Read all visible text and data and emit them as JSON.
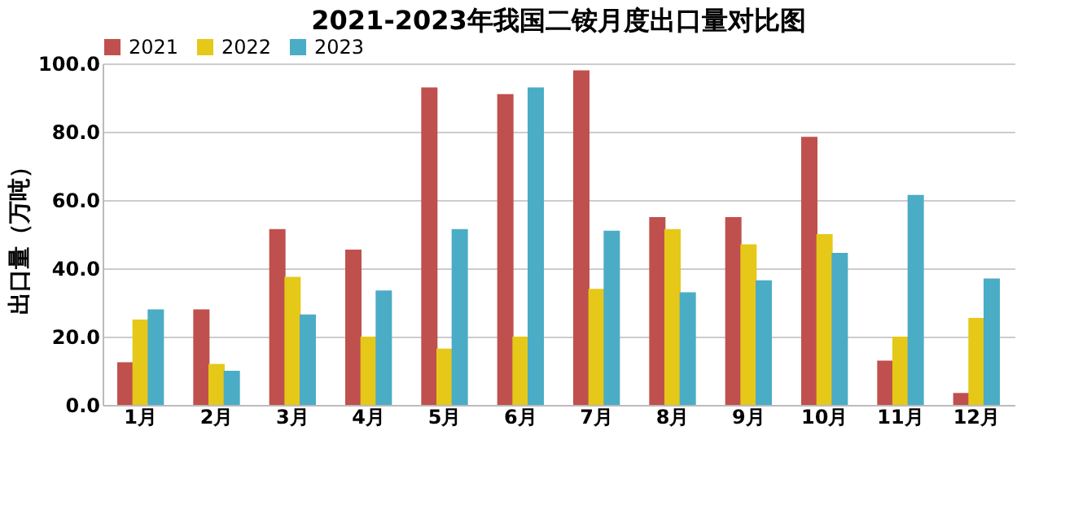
{
  "chart_data": {
    "type": "bar",
    "title": "2021-2023年我国二铵月度出口量对比图",
    "ylabel": "出口量（万吨）",
    "categories": [
      "1月",
      "2月",
      "3月",
      "4月",
      "5月",
      "6月",
      "7月",
      "8月",
      "9月",
      "10月",
      "11月",
      "12月"
    ],
    "series": [
      {
        "name": "2021",
        "color": "#c0504d",
        "values": [
          12.5,
          28,
          51.5,
          45.5,
          93,
          91,
          98,
          55,
          55,
          78.5,
          13,
          3.5
        ]
      },
      {
        "name": "2022",
        "color": "#e6c818",
        "values": [
          25,
          12,
          37.5,
          20,
          16.5,
          20,
          34,
          51.5,
          47,
          50,
          20,
          25.5
        ]
      },
      {
        "name": "2023",
        "color": "#4bacc6",
        "values": [
          28,
          10,
          26.5,
          33.5,
          51.5,
          93,
          51,
          33,
          36.5,
          44.5,
          61.5,
          37
        ]
      }
    ],
    "ylim": [
      0,
      100
    ],
    "yticks": [
      {
        "value": 0,
        "label": "0.0"
      },
      {
        "value": 20,
        "label": "20.0"
      },
      {
        "value": 40,
        "label": "40.0"
      },
      {
        "value": 60,
        "label": "60.0"
      },
      {
        "value": 80,
        "label": "80.0"
      },
      {
        "value": 100,
        "label": "100.0"
      }
    ],
    "grid": "y",
    "legend": "top"
  }
}
